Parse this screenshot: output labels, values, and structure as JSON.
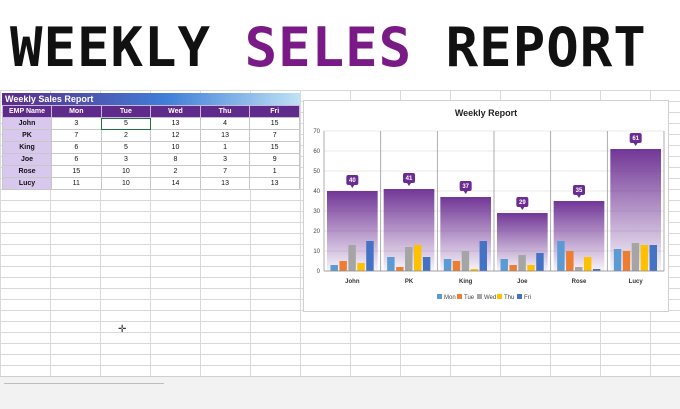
{
  "banner": {
    "word1": "WEEKLY",
    "word2": "SELES",
    "word3": "REPORT"
  },
  "table": {
    "caption": "Weekly Sales Report",
    "headers": [
      "EMP Name",
      "Mon",
      "Tue",
      "Wed",
      "Thu",
      "Fri"
    ],
    "rows": [
      [
        "John",
        "3",
        "5",
        "13",
        "4",
        "15"
      ],
      [
        "PK",
        "7",
        "2",
        "12",
        "13",
        "7"
      ],
      [
        "King",
        "6",
        "5",
        "10",
        "1",
        "15"
      ],
      [
        "Joe",
        "6",
        "3",
        "8",
        "3",
        "9"
      ],
      [
        "Rose",
        "15",
        "10",
        "2",
        "7",
        "1"
      ],
      [
        "Lucy",
        "11",
        "10",
        "14",
        "13",
        "13"
      ]
    ],
    "selected_cell": {
      "row": 0,
      "col": 2
    }
  },
  "chart_data": {
    "type": "bar",
    "title": "Weekly Report",
    "categories": [
      "John",
      "PK",
      "King",
      "Joe",
      "Rose",
      "Lucy"
    ],
    "ylim": [
      0,
      70
    ],
    "yticks": [
      0,
      10,
      20,
      30,
      40,
      50,
      60,
      70
    ],
    "grid": true,
    "legend_placement": "bottom",
    "totals": [
      40,
      41,
      37,
      29,
      35,
      61
    ],
    "series": [
      {
        "name": "Mon",
        "color": "#5b9bd5",
        "values": [
          3,
          7,
          6,
          6,
          15,
          11
        ]
      },
      {
        "name": "Tue",
        "color": "#ed7d31",
        "values": [
          5,
          2,
          5,
          3,
          10,
          10
        ]
      },
      {
        "name": "Wed",
        "color": "#a5a5a5",
        "values": [
          13,
          12,
          10,
          8,
          2,
          14
        ]
      },
      {
        "name": "Thu",
        "color": "#ffc000",
        "values": [
          4,
          13,
          1,
          3,
          7,
          13
        ]
      },
      {
        "name": "Fri",
        "color": "#4472c4",
        "values": [
          15,
          7,
          15,
          9,
          1,
          13
        ]
      }
    ],
    "total_color": "#6a2c91"
  }
}
